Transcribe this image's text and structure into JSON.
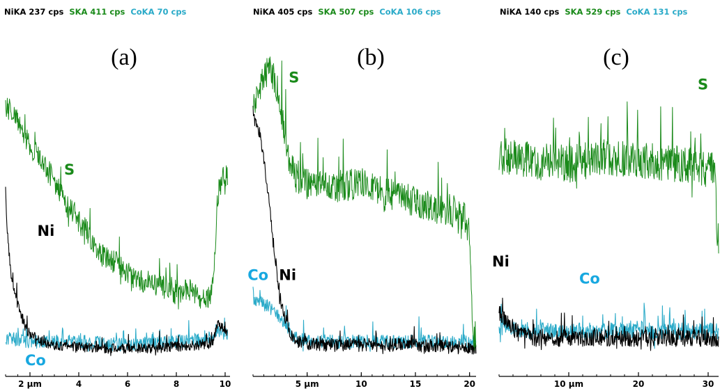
{
  "colors": {
    "Ni": "#000000",
    "S": "#1a8a1a",
    "Co": "#2aaac8",
    "Co_label": "#18a8e0"
  },
  "chart_data": [
    {
      "type": "line",
      "panel_label": "(a)",
      "header": [
        {
          "text": "NiKA 237 cps",
          "color": "#000000"
        },
        {
          "text": "SKA 411 cps",
          "color": "#1a8a1a"
        },
        {
          "text": "CoKA 70 cps",
          "color": "#2aaac8"
        }
      ],
      "xlim": [
        1.0,
        10.2
      ],
      "ylim": [
        0,
        1
      ],
      "ticks": [
        {
          "x": 2,
          "label": "2 µm"
        },
        {
          "x": 4,
          "label": "4"
        },
        {
          "x": 6,
          "label": "6"
        },
        {
          "x": 8,
          "label": "8"
        },
        {
          "x": 10,
          "label": "10"
        }
      ],
      "element_labels": [
        {
          "text": "S",
          "series": "S",
          "x": 3.4,
          "y": 0.58
        },
        {
          "text": "Ni",
          "series": "Ni",
          "x": 2.3,
          "y": 0.4
        },
        {
          "text": "Co",
          "series": "Co_label",
          "x": 1.8,
          "y": 0.02
        }
      ],
      "series": [
        {
          "name": "S",
          "noise": 0.035,
          "points": [
            [
              1.0,
              0.78
            ],
            [
              1.5,
              0.74
            ],
            [
              2.0,
              0.66
            ],
            [
              2.5,
              0.62
            ],
            [
              3.0,
              0.56
            ],
            [
              3.5,
              0.49
            ],
            [
              4.0,
              0.45
            ],
            [
              4.5,
              0.39
            ],
            [
              5.0,
              0.34
            ],
            [
              5.5,
              0.32
            ],
            [
              6.0,
              0.29
            ],
            [
              6.5,
              0.27
            ],
            [
              7.0,
              0.26
            ],
            [
              7.5,
              0.25
            ],
            [
              8.0,
              0.23
            ],
            [
              8.5,
              0.24
            ],
            [
              9.0,
              0.22
            ],
            [
              9.3,
              0.22
            ],
            [
              9.5,
              0.25
            ],
            [
              9.7,
              0.52
            ],
            [
              9.9,
              0.58
            ],
            [
              10.1,
              0.57
            ]
          ]
        },
        {
          "name": "Ni",
          "noise": 0.015,
          "points": [
            [
              1.0,
              0.53
            ],
            [
              1.05,
              0.43
            ],
            [
              1.2,
              0.3
            ],
            [
              1.4,
              0.22
            ],
            [
              1.7,
              0.15
            ],
            [
              2.0,
              0.11
            ],
            [
              2.5,
              0.09
            ],
            [
              3.0,
              0.08
            ],
            [
              5.0,
              0.07
            ],
            [
              7.0,
              0.07
            ],
            [
              9.0,
              0.08
            ],
            [
              9.5,
              0.09
            ],
            [
              9.7,
              0.14
            ],
            [
              10.1,
              0.12
            ]
          ]
        },
        {
          "name": "Co",
          "noise": 0.02,
          "points": [
            [
              1.0,
              0.1
            ],
            [
              2.0,
              0.09
            ],
            [
              4.0,
              0.09
            ],
            [
              6.0,
              0.08
            ],
            [
              8.0,
              0.09
            ],
            [
              9.5,
              0.1
            ],
            [
              9.8,
              0.12
            ],
            [
              10.1,
              0.11
            ]
          ]
        }
      ]
    },
    {
      "type": "line",
      "panel_label": "(b)",
      "header": [
        {
          "text": "NiKA 405 cps",
          "color": "#000000"
        },
        {
          "text": "SKA 507 cps",
          "color": "#1a8a1a"
        },
        {
          "text": "CoKA 106 cps",
          "color": "#2aaac8"
        }
      ],
      "xlim": [
        0.0,
        20.6
      ],
      "ylim": [
        0,
        1
      ],
      "ticks": [
        {
          "x": 5,
          "label": "5 µm"
        },
        {
          "x": 10,
          "label": "10"
        },
        {
          "x": 15,
          "label": "15"
        },
        {
          "x": 20,
          "label": "20"
        }
      ],
      "element_labels": [
        {
          "text": "S",
          "series": "S",
          "x": 3.3,
          "y": 0.85
        },
        {
          "text": "Co",
          "series": "Co_label",
          "x": -0.5,
          "y": 0.27
        },
        {
          "text": "Ni",
          "series": "Ni",
          "x": 2.4,
          "y": 0.27
        }
      ],
      "series": [
        {
          "name": "S",
          "noise": 0.045,
          "points": [
            [
              0.0,
              0.78
            ],
            [
              0.5,
              0.82
            ],
            [
              1.0,
              0.86
            ],
            [
              1.5,
              0.9
            ],
            [
              2.0,
              0.86
            ],
            [
              2.5,
              0.8
            ],
            [
              3.0,
              0.68
            ],
            [
              3.5,
              0.6
            ],
            [
              4.0,
              0.57
            ],
            [
              5.0,
              0.55
            ],
            [
              6.0,
              0.56
            ],
            [
              8.0,
              0.54
            ],
            [
              10.0,
              0.56
            ],
            [
              12.0,
              0.53
            ],
            [
              14.0,
              0.51
            ],
            [
              16.0,
              0.49
            ],
            [
              18.0,
              0.47
            ],
            [
              19.5,
              0.46
            ],
            [
              20.0,
              0.4
            ],
            [
              20.3,
              0.12
            ],
            [
              20.6,
              0.1
            ]
          ]
        },
        {
          "name": "Ni",
          "noise": 0.02,
          "points": [
            [
              0.0,
              0.75
            ],
            [
              0.6,
              0.7
            ],
            [
              1.0,
              0.62
            ],
            [
              1.4,
              0.52
            ],
            [
              1.8,
              0.4
            ],
            [
              2.2,
              0.3
            ],
            [
              2.5,
              0.22
            ],
            [
              3.0,
              0.16
            ],
            [
              3.5,
              0.11
            ],
            [
              4.0,
              0.09
            ],
            [
              6.0,
              0.08
            ],
            [
              10.0,
              0.08
            ],
            [
              15.0,
              0.08
            ],
            [
              20.6,
              0.07
            ]
          ]
        },
        {
          "name": "Co",
          "noise": 0.02,
          "points": [
            [
              0.0,
              0.22
            ],
            [
              1.0,
              0.2
            ],
            [
              2.0,
              0.18
            ],
            [
              3.0,
              0.14
            ],
            [
              4.0,
              0.1
            ],
            [
              6.0,
              0.09
            ],
            [
              10.0,
              0.09
            ],
            [
              15.0,
              0.09
            ],
            [
              20.6,
              0.09
            ]
          ]
        }
      ]
    },
    {
      "type": "line",
      "panel_label": "(c)",
      "header": [
        {
          "text": "NiKA 140 cps",
          "color": "#000000"
        },
        {
          "text": "SKA 529 cps",
          "color": "#1a8a1a"
        },
        {
          "text": "CoKA 131 cps",
          "color": "#2aaac8"
        }
      ],
      "xlim": [
        0.0,
        31.5
      ],
      "ylim": [
        0,
        1
      ],
      "ticks": [
        {
          "x": 10,
          "label": "10 µm"
        },
        {
          "x": 20,
          "label": "20"
        },
        {
          "x": 30,
          "label": "30"
        }
      ],
      "element_labels": [
        {
          "text": "S",
          "series": "S",
          "x": 28.5,
          "y": 0.83
        },
        {
          "text": "Ni",
          "series": "Ni",
          "x": -1.0,
          "y": 0.31
        },
        {
          "text": "Co",
          "series": "Co_label",
          "x": 11.5,
          "y": 0.26
        }
      ],
      "series": [
        {
          "name": "S",
          "noise": 0.055,
          "points": [
            [
              0.0,
              0.63
            ],
            [
              5.0,
              0.62
            ],
            [
              10.0,
              0.61
            ],
            [
              15.0,
              0.63
            ],
            [
              20.0,
              0.62
            ],
            [
              25.0,
              0.61
            ],
            [
              30.0,
              0.6
            ],
            [
              31.0,
              0.58
            ],
            [
              31.3,
              0.4
            ],
            [
              31.5,
              0.38
            ]
          ]
        },
        {
          "name": "Ni",
          "noise": 0.025,
          "points": [
            [
              0.0,
              0.18
            ],
            [
              1.0,
              0.15
            ],
            [
              3.0,
              0.11
            ],
            [
              5.0,
              0.1
            ],
            [
              10.0,
              0.1
            ],
            [
              20.0,
              0.1
            ],
            [
              31.5,
              0.1
            ]
          ]
        },
        {
          "name": "Co",
          "noise": 0.025,
          "points": [
            [
              0.0,
              0.13
            ],
            [
              5.0,
              0.12
            ],
            [
              10.0,
              0.12
            ],
            [
              20.0,
              0.12
            ],
            [
              31.5,
              0.12
            ]
          ]
        }
      ]
    }
  ]
}
